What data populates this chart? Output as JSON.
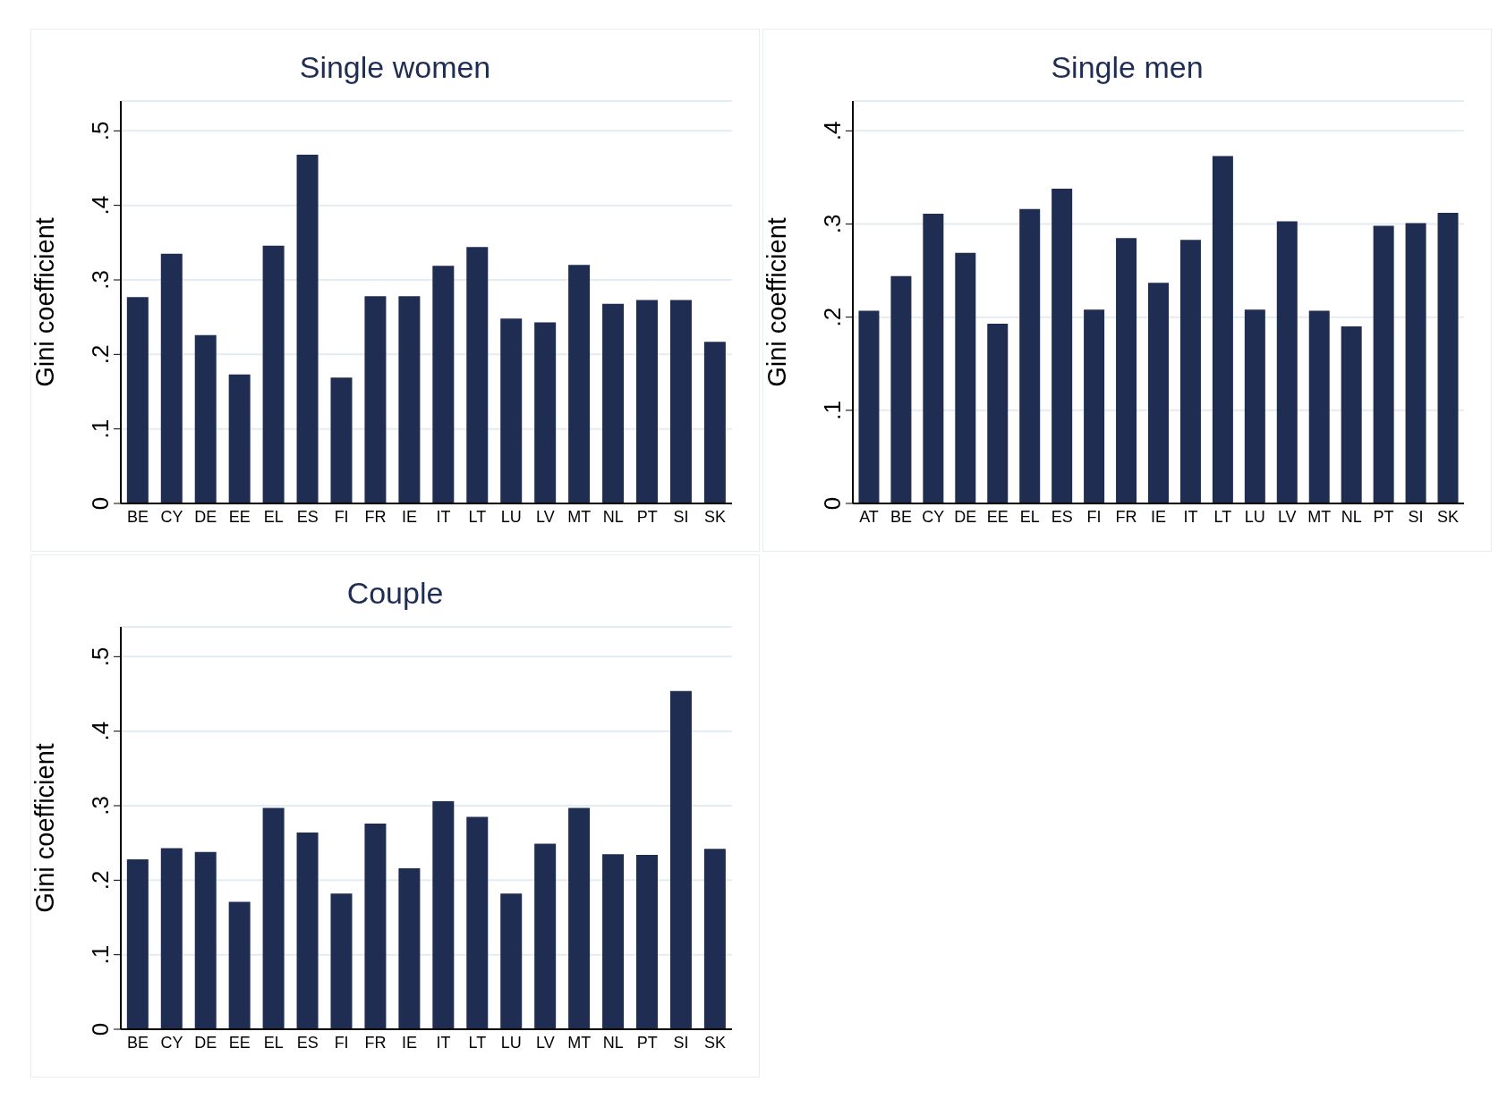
{
  "chart_data": [
    {
      "type": "bar",
      "title": "Single women",
      "ylabel": "Gini coefficient",
      "color": "#1f2d52",
      "grid": "y",
      "categories": [
        "BE",
        "CY",
        "DE",
        "EE",
        "EL",
        "ES",
        "FI",
        "FR",
        "IE",
        "IT",
        "LT",
        "LU",
        "LV",
        "MT",
        "NL",
        "PT",
        "SI",
        "SK"
      ],
      "values": [
        0.277,
        0.335,
        0.226,
        0.173,
        0.346,
        0.468,
        0.169,
        0.278,
        0.278,
        0.319,
        0.344,
        0.248,
        0.243,
        0.32,
        0.268,
        0.273,
        0.273,
        0.217
      ],
      "ylim": [
        0,
        0.54
      ],
      "yticks": [
        {
          "value": 0,
          "label": "0"
        },
        {
          "value": 0.1,
          "label": ".1"
        },
        {
          "value": 0.2,
          "label": ".2"
        },
        {
          "value": 0.3,
          "label": ".3"
        },
        {
          "value": 0.4,
          "label": ".4"
        },
        {
          "value": 0.5,
          "label": ".5"
        }
      ]
    },
    {
      "type": "bar",
      "title": "Single men",
      "ylabel": "Gini coefficient",
      "color": "#1f2d52",
      "grid": "y",
      "categories": [
        "AT",
        "BE",
        "CY",
        "DE",
        "EE",
        "EL",
        "ES",
        "FI",
        "FR",
        "IE",
        "IT",
        "LT",
        "LU",
        "LV",
        "MT",
        "NL",
        "PT",
        "SI",
        "SK"
      ],
      "values": [
        0.207,
        0.244,
        0.311,
        0.269,
        0.193,
        0.316,
        0.338,
        0.208,
        0.285,
        0.237,
        0.283,
        0.373,
        0.208,
        0.303,
        0.207,
        0.19,
        0.298,
        0.301,
        0.312
      ],
      "ylim": [
        0,
        0.432
      ],
      "yticks": [
        {
          "value": 0,
          "label": "0"
        },
        {
          "value": 0.1,
          "label": ".1"
        },
        {
          "value": 0.2,
          "label": ".2"
        },
        {
          "value": 0.3,
          "label": ".3"
        },
        {
          "value": 0.4,
          "label": ".4"
        }
      ]
    },
    {
      "type": "bar",
      "title": "Couple",
      "ylabel": "Gini coefficient",
      "color": "#1f2d52",
      "grid": "y",
      "categories": [
        "BE",
        "CY",
        "DE",
        "EE",
        "EL",
        "ES",
        "FI",
        "FR",
        "IE",
        "IT",
        "LT",
        "LU",
        "LV",
        "MT",
        "NL",
        "PT",
        "SI",
        "SK"
      ],
      "values": [
        0.228,
        0.243,
        0.238,
        0.171,
        0.297,
        0.264,
        0.182,
        0.276,
        0.216,
        0.306,
        0.285,
        0.182,
        0.249,
        0.297,
        0.235,
        0.234,
        0.454,
        0.242
      ],
      "ylim": [
        0,
        0.54
      ],
      "yticks": [
        {
          "value": 0,
          "label": "0"
        },
        {
          "value": 0.1,
          "label": ".1"
        },
        {
          "value": 0.2,
          "label": ".2"
        },
        {
          "value": 0.3,
          "label": ".3"
        },
        {
          "value": 0.4,
          "label": ".4"
        },
        {
          "value": 0.5,
          "label": ".5"
        }
      ]
    }
  ]
}
